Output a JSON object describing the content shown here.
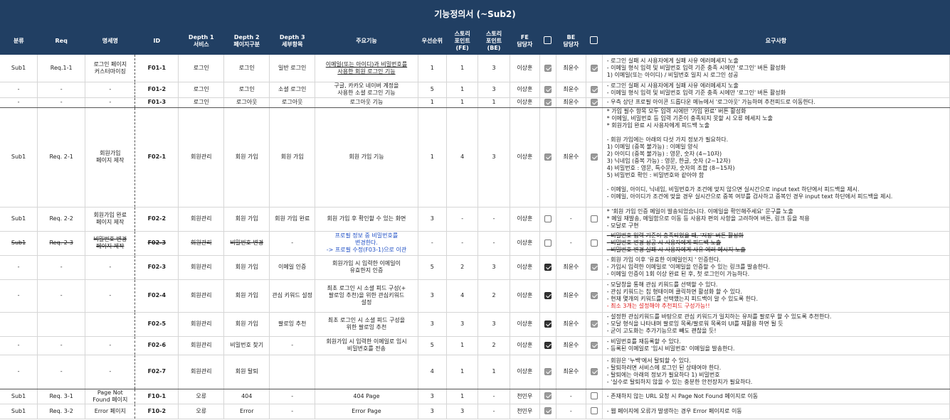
{
  "title": "기능정의서 (~Sub2)",
  "headers": [
    "분류",
    "Req",
    "명세명",
    "ID",
    "Depth 1\n서비스",
    "Depth 2\n페이지구분",
    "Depth 3\n세부항목",
    "주요기능",
    "우선순위",
    "스토리\n포인트\n(FE)",
    "스토리\n포인트\n(BE)",
    "FE\n담당자",
    "",
    "BE\n담당자",
    "",
    "요구사항"
  ],
  "rows": [
    {
      "cat": "Sub1",
      "req": "Req.1-1",
      "spec": "로그인 페이지\n커스터마이징",
      "id": "F01-1",
      "d1": "로그인",
      "d2": "로그인",
      "d3": "일반 로그인",
      "func": "이메일(또는 아이디)과 비밀번호를\n사용한 회원 로그인 기능",
      "pri": "1",
      "spfe": "1",
      "spbe": "3",
      "fe": "이상훈",
      "fechk": "on",
      "be": "최윤수",
      "bechk": "on",
      "reqs": "- 로그인 실패 시 사용자에게 실패 사유 에러메세지 노출\n- 이메일 형식 입력 및 비밀번호 입력 기준 충족 시에만 '로그인' 버튼 활성화\n1) 이메일(또는 아이디) / 비밀번호 일치 시 로그인 성공"
    },
    {
      "cat": "-",
      "req": "-",
      "spec": "-",
      "id": "F01-2",
      "d1": "로그인",
      "d2": "로그인",
      "d3": "소셜 로그인",
      "func": "구글, 카카오 네이버 계정을\n사용한 소셜 로그인 기능",
      "pri": "5",
      "spfe": "1",
      "spbe": "3",
      "fe": "이상훈",
      "fechk": "on",
      "be": "최윤수",
      "bechk": "on",
      "reqs": "- 로그인 실패 시 사용자에게 실패 사유 에러메세지 노출\n- 이메일 형식 입력 및 비밀번호 입력 기준 충족 시에만 '로그인' 버튼 활성화"
    },
    {
      "cat": "-",
      "req": "-",
      "spec": "-",
      "id": "F01-3",
      "d1": "로그인",
      "d2": "로그아웃",
      "d3": "로그아웃",
      "func": "로그아웃 기능",
      "pri": "1",
      "spfe": "1",
      "spbe": "1",
      "fe": "이상훈",
      "fechk": "on",
      "be": "최윤수",
      "bechk": "on",
      "reqs": "- 우측 상단 프로필 아이콘 드롭다운 메뉴에서 '로그아웃' 가능하며 추천피드로 이동한다."
    },
    {
      "cat": "Sub1",
      "req": "Req. 2-1",
      "spec": "회원가입\n페이지 제작",
      "id": "F02-1",
      "d1": "회원관리",
      "d2": "회원 가입",
      "d3": "회원 가입",
      "func": "회원 가입 기능",
      "pri": "1",
      "spfe": "4",
      "spbe": "3",
      "fe": "이상훈",
      "fechk": "on",
      "be": "최윤수",
      "bechk": "on",
      "reqs": "* 가입 필수 항목 모두 입력 시에만 '가입 완료' 버튼 활성화\n* 이메일, 비밀번호 등 입력 기준이 충족되지 못할 시 오류 메세지 노출\n* 회원가입 완료 시 사용자에게 피드백 노출\n\n- 회원 가입에는 아래의 다섯 가지 정보가 필요하다.\n1) 이메일 (중복 불가능) : 이메일 양식\n2) 아이디 (중복 불가능) : 영문, 숫자 (4~10자)\n3) 닉네임 (중복 가능) : 영문, 한글, 숫자 (2~12자)\n4) 비밀번호 : 영문, 특수문자, 숫자의 조합 (8~15자)\n5) 비밀번호 확인 : 비밀번호와 같아야 함\n\n- 이메일, 아이디, 닉네임, 비밀번호가 조건에 맞지 않으면 실시간으로 input text 하단에서 피드백을 제시.\n- 이메일, 아이디가 조건에 맞을 경우 실시간으로 중복 여부를 검사하고 중복인 경우 input text 하단에서 피드백을 제시."
    },
    {
      "cat": "Sub1",
      "req": "Req. 2-2",
      "spec": "회원가입 완료\n페이지 제작",
      "id": "F02-2",
      "d1": "회원관리",
      "d2": "회원 가입",
      "d3": "회원 가입 완료",
      "func": "회원 가입 후 확인할 수 있는 화면",
      "pri": "3",
      "spfe": "-",
      "spbe": "-",
      "fe": "이상훈",
      "fechk": "off",
      "be": "-",
      "bechk": "off",
      "reqs": "* '회원 가입 인증 메일이 발송되었습니다. 이메일을 확인해주세요' 문구를 노출\n* 메일 재발송, 메일함으로 이동 등 사용자 편의 사항을 고려하여 버튼, 링크 등을 적용\n- 모달로 구현"
    },
    {
      "cat": "Sub1",
      "req": "Req. 2-3",
      "spec": "비밀번호 변경\n페이지 제작",
      "id": "F02-3",
      "d1": "회원관리",
      "d2": "비밀번호 변경",
      "d3": "-",
      "func": "프로필 정보 중 비밀번호를\n변경한다.\n-> 프로필 수정(F03-1)으로 이관",
      "pri": "-",
      "spfe": "-",
      "spbe": "-",
      "fe": "이상훈",
      "fechk": "off",
      "be": "-",
      "bechk": "off",
      "reqs": "- 비밀번호 입력 기준이 충족되었을 때, '저장' 버튼 활성화\n- 비밀번호 변경 성공 시 사용자에게 피드백 노출\n- 비밀번호 변경 실패 시 사용자에게 사유 에러 메시지 노출"
    },
    {
      "cat": "-",
      "req": "-",
      "spec": "-",
      "id": "F02-3",
      "d1": "회원관리",
      "d2": "회원 가입",
      "d3": "이메일 인증",
      "func": "회원가입 시 입력한 이메일이\n유효한지 인증",
      "pri": "5",
      "spfe": "2",
      "spbe": "3",
      "fe": "이상훈",
      "fechk": "dark",
      "be": "최윤수",
      "bechk": "on",
      "reqs": "- 회원 가입 이후 '유효한 이메일인지 ' 인증한다.\n- 가입시 입력한 이메일로 '이메일을 인증할 수 있는 링크를 발송한다.\n- 이메일 인증이 1회 이상 완료 된 후, 첫 로그인이 가능하다."
    },
    {
      "cat": "-",
      "req": "-",
      "spec": "-",
      "id": "F02-4",
      "d1": "회원관리",
      "d2": "회원 가입",
      "d3": "관심 키워드 설정",
      "func": "최초 로그인 시 소셜 피드 구성(+\n팔로잉 추천)을 위한 관심키워드\n설정",
      "pri": "3",
      "spfe": "4",
      "spbe": "2",
      "fe": "이상훈",
      "fechk": "dark",
      "be": "최윤수",
      "bechk": "on",
      "reqs": "- 모달창을 통해 관심 키워드를 선택할 수 있다.\n- 관심 키워드는 칩 형태이며 클릭하면 활성화 할 수 있다.\n- 현재 몇개의 키워드를 선택했는지 피드백이 알 수 있도록 한다.\n- 최소 3개는 설정해야 추천피드 구성가능!!"
    },
    {
      "cat": "",
      "req": "",
      "spec": "",
      "id": "F02-5",
      "d1": "회원관리",
      "d2": "회원 가입",
      "d3": "팔로잉 추천",
      "func": "최초 로그인 시 소셜 피드 구성을\n위한 팔로잉 추천",
      "pri": "3",
      "spfe": "3",
      "spbe": "3",
      "fe": "이상훈",
      "fechk": "dark",
      "be": "최윤수",
      "bechk": "on",
      "reqs": "- 설정한 관심키워드를 바탕으로 관심 키워드가 일치하는 유저를 팔로우 할 수 있도록 추천한다.\n- 모달 형식을 나타내며 팔로잉 목록/팔로워 목록의 UI를 재활용 하면 될 듯\n- 굳이 고도화는 추가기능으로 빼도 괜찮을 듯!"
    },
    {
      "cat": "-",
      "req": "-",
      "spec": "-",
      "id": "F02-6",
      "d1": "회원관리",
      "d2": "비밀번호 찾기",
      "d3": "-",
      "func": "회원가입 시 입력한 이메일로 임시\n비밀번호를 전송",
      "pri": "5",
      "spfe": "1",
      "spbe": "2",
      "fe": "이상훈",
      "fechk": "dark",
      "be": "최윤수",
      "bechk": "on",
      "reqs": "- 비밀번호를 재등록할 수 있다.\n- 등록된 이메일로 '임시 비밀번호' 이메일을 발송한다."
    },
    {
      "cat": "-",
      "req": "-",
      "spec": "-",
      "id": "F02-7",
      "d1": "회원관리",
      "d2": "회원 탈퇴",
      "d3": "",
      "func": "",
      "pri": "4",
      "spfe": "1",
      "spbe": "1",
      "fe": "이상훈",
      "fechk": "on",
      "be": "최윤수",
      "bechk": "on",
      "reqs": "- 회원은 '누백'에서 탈퇴할 수 있다.\n- 탈퇴하려면 서비스에 로그인 된 상태여야 한다.\n- 탈퇴에는 아래의 정보가 필요하다 1) 비밀번호\n- '실수로 탈퇴하지 않을 수 있는 충분한 안전장치가 필요하다."
    },
    {
      "cat": "Sub1",
      "req": "Req. 3-1",
      "spec": "Page Not\nFound 페이지",
      "id": "F10-1",
      "d1": "오류",
      "d2": "404",
      "d3": "-",
      "func": "404 Page",
      "pri": "3",
      "spfe": "1",
      "spbe": "-",
      "fe": "천민우",
      "fechk": "on",
      "be": "-",
      "bechk": "off",
      "reqs": "- 존재하지 않는 URL 요청 시 Page Not Found 페이지로 이동"
    },
    {
      "cat": "Sub1",
      "req": "Req. 3-2",
      "spec": "Error 페이지",
      "id": "F10-2",
      "d1": "오류",
      "d2": "Error",
      "d3": "-",
      "func": "Error Page",
      "pri": "3",
      "spfe": "3",
      "spbe": "-",
      "fe": "천민우",
      "fechk": "on",
      "be": "-",
      "bechk": "off",
      "reqs": "- 웹 페이지에 오류가 발생하는 경우 Error 페이지로 이동"
    }
  ]
}
